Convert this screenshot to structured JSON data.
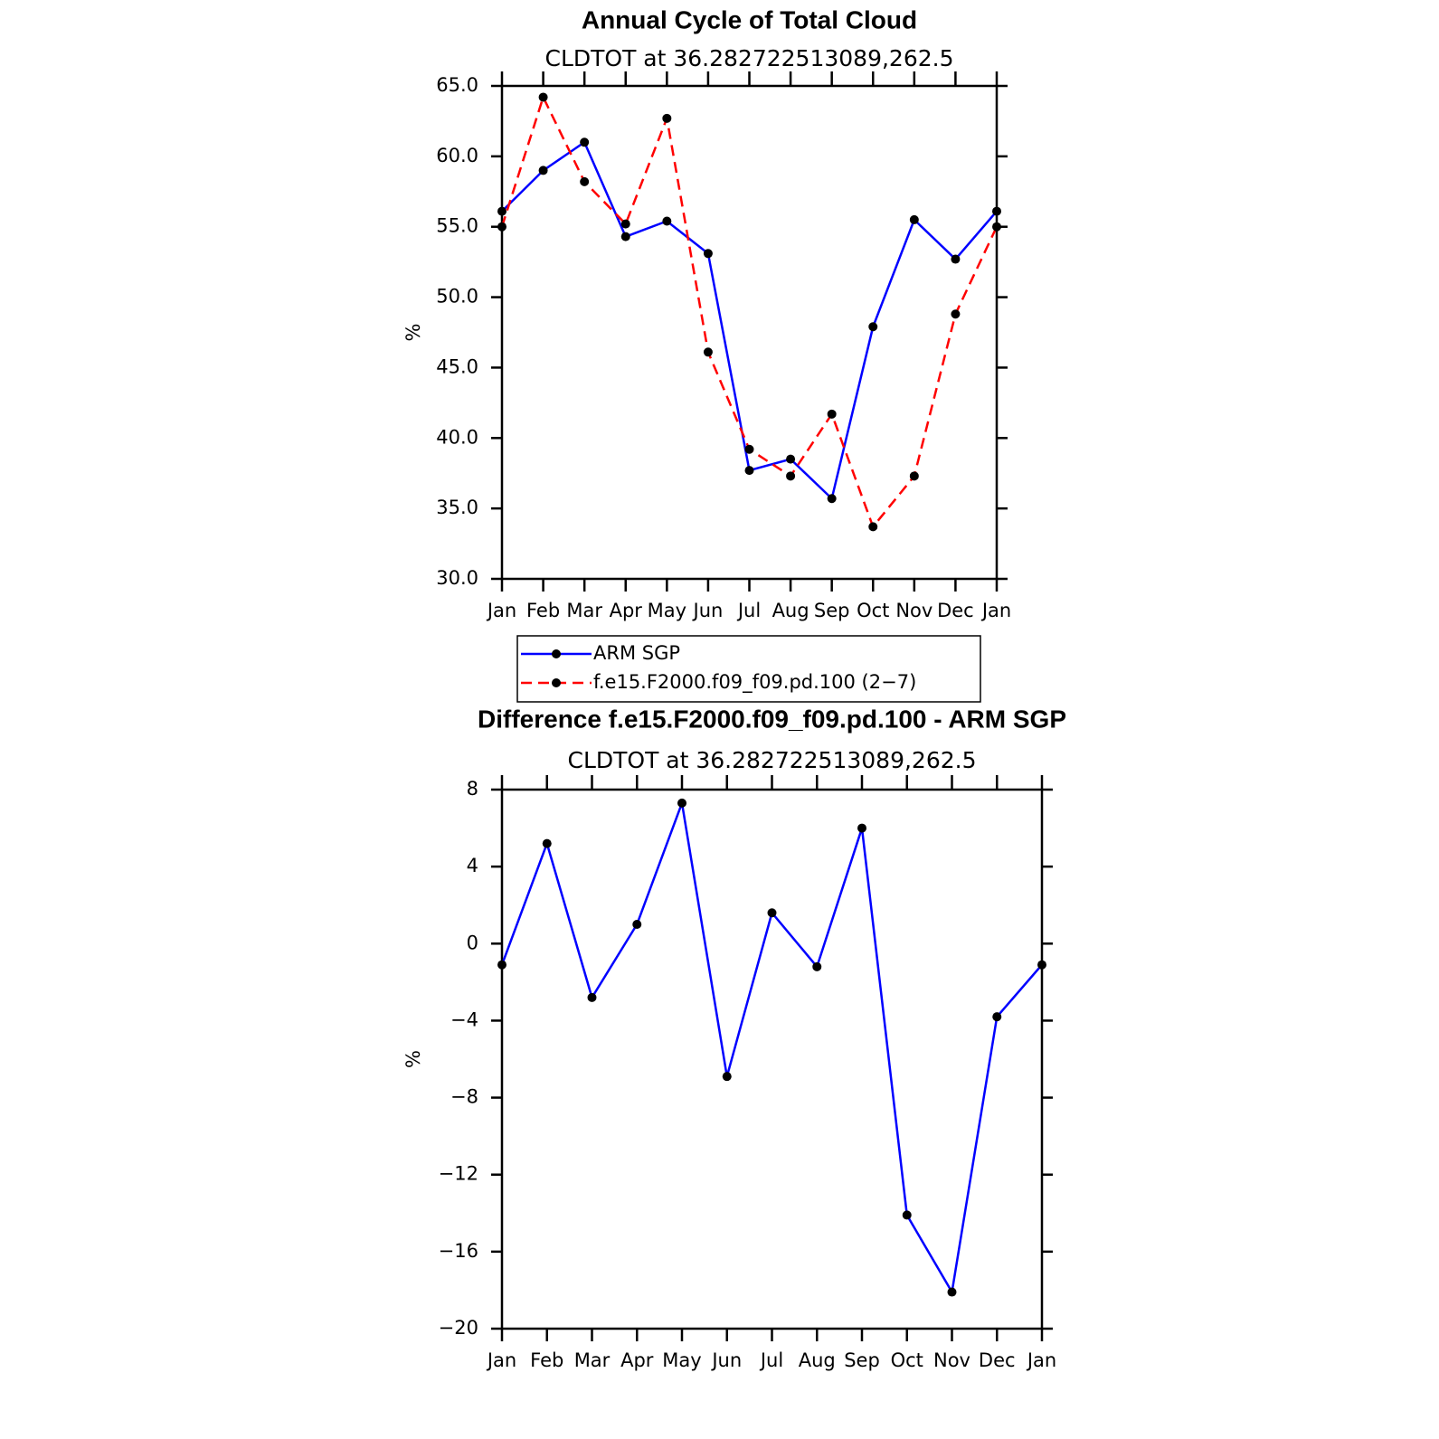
{
  "chart_data": [
    {
      "type": "line",
      "title": "Annual Cycle of Total Cloud",
      "subtitle": "CLDTOT at 36.282722513089,262.5",
      "ylabel": "%",
      "categories": [
        "Jan",
        "Feb",
        "Mar",
        "Apr",
        "May",
        "Jun",
        "Jul",
        "Aug",
        "Sep",
        "Oct",
        "Nov",
        "Dec",
        "Jan"
      ],
      "series": [
        {
          "name": "ARM SGP",
          "color": "#0000ff",
          "line_style": "solid",
          "values": [
            56.1,
            59.0,
            61.0,
            54.3,
            55.4,
            53.1,
            37.7,
            38.5,
            35.7,
            47.9,
            55.5,
            52.7,
            56.1
          ]
        },
        {
          "name": "f.e15.F2000.f09_f09.pd.100 (2−7)",
          "color": "#ff0000",
          "line_style": "dashed",
          "values": [
            55.0,
            64.2,
            58.2,
            55.2,
            62.7,
            46.1,
            39.2,
            37.3,
            41.7,
            33.7,
            37.3,
            48.8,
            55.0
          ]
        }
      ],
      "ylim": [
        30,
        65
      ],
      "yticks": [
        {
          "value": 30,
          "label": "30.0"
        },
        {
          "value": 35,
          "label": "35.0"
        },
        {
          "value": 40,
          "label": "40.0"
        },
        {
          "value": 45,
          "label": "45.0"
        },
        {
          "value": 50,
          "label": "50.0"
        },
        {
          "value": 55,
          "label": "55.0"
        },
        {
          "value": 60,
          "label": "60.0"
        },
        {
          "value": 65,
          "label": "65.0"
        }
      ],
      "marker": "dot",
      "marker_color": "#000000",
      "legend": "below"
    },
    {
      "type": "line",
      "title": "Difference f.e15.F2000.f09_f09.pd.100 - ARM SGP",
      "subtitle": "CLDTOT at 36.282722513089,262.5",
      "ylabel": "%",
      "categories": [
        "Jan",
        "Feb",
        "Mar",
        "Apr",
        "May",
        "Jun",
        "Jul",
        "Aug",
        "Sep",
        "Oct",
        "Nov",
        "Dec",
        "Jan"
      ],
      "series": [
        {
          "color": "#0000ff",
          "line_style": "solid",
          "values": [
            -1.1,
            5.2,
            -2.8,
            1.0,
            7.3,
            -6.9,
            1.6,
            -1.2,
            6.0,
            -14.1,
            -18.1,
            -3.8,
            -1.1
          ]
        }
      ],
      "ylim": [
        -20,
        8
      ],
      "yticks": [
        {
          "value": -20,
          "label": "−20"
        },
        {
          "value": -16,
          "label": "−16"
        },
        {
          "value": -12,
          "label": "−12"
        },
        {
          "value": -8,
          "label": "−8"
        },
        {
          "value": -4,
          "label": "−4"
        },
        0,
        4,
        8
      ],
      "marker": "dot",
      "marker_color": "#000000"
    }
  ]
}
